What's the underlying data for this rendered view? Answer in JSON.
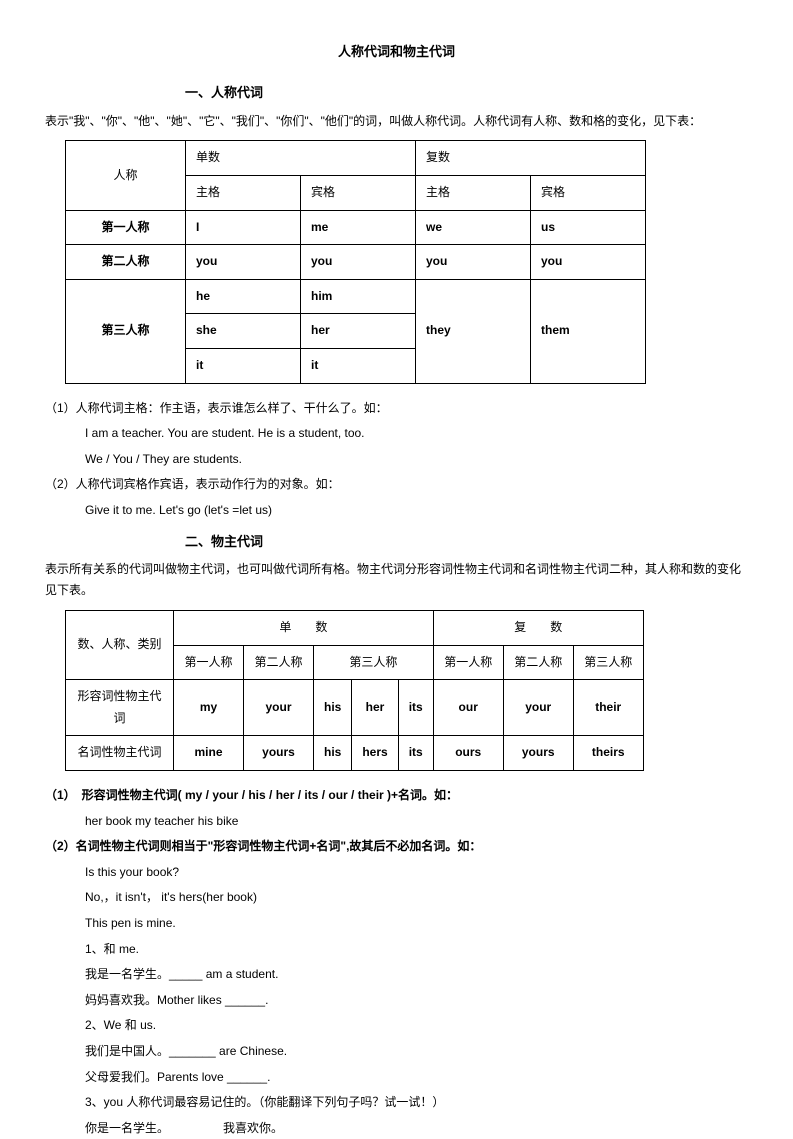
{
  "title": "人称代词和物主代词",
  "sec1": {
    "heading": "一、人称代词",
    "intro": "表示\"我\"、\"你\"、\"他\"、\"她\"、\"它\"、\"我们\"、\"你们\"、\"他们\"的词，叫做人称代词。人称代词有人称、数和格的变化，见下表：",
    "headers": {
      "person": "人称",
      "singular": "单数",
      "plural": "复数",
      "subj": "主格",
      "obj": "宾格"
    },
    "rows": {
      "p1": {
        "label": "第一人称",
        "ss": "I",
        "so": "me",
        "ps": "we",
        "po": "us"
      },
      "p2": {
        "label": "第二人称",
        "ss": "you",
        "so": "you",
        "ps": "you",
        "po": "you"
      },
      "p3": {
        "label": "第三人称",
        "ss1": "he",
        "so1": "him",
        "ss2": "she",
        "so2": "her",
        "ss3": "it",
        "so3": "it",
        "ps": "they",
        "po": "them"
      }
    },
    "note1": "（1）人称代词主格：作主语，表示谁怎么样了、干什么了。如：",
    "ex1a": "I   am a teacher.      You are student.        He is a student, too.",
    "ex1b": "We / You / They are students.",
    "note2": "（2）人称代词宾格作宾语，表示动作行为的对象。如：",
    "ex2a": "Give it to me.   Let's go (let's =let us)"
  },
  "sec2": {
    "heading": "二、物主代词",
    "intro": "表示所有关系的代词叫做物主代词，也可叫做代词所有格。物主代词分形容词性物主代词和名词性物主代词二种，其人称和数的变化见下表。",
    "headers": {
      "cat": "数、人称、类别",
      "singular": "单　　数",
      "plural": "复　　数",
      "p1": "第一人称",
      "p2": "第二人称",
      "p3": "第三人称"
    },
    "row1": {
      "label": "形容词性物主代词",
      "c": [
        "my",
        "your",
        "his",
        "her",
        "its",
        "our",
        "your",
        "their"
      ]
    },
    "row2": {
      "label": "名词性物主代词",
      "c": [
        "mine",
        "yours",
        "his",
        "hers",
        "its",
        "ours",
        "yours",
        "theirs"
      ]
    },
    "note1": "（1）　形容词性物主代词( my / your / his / her / its / our / their )+名词。如：",
    "ex1": "her book      my teacher      his bike",
    "note2": "（2）名词性物主代词则相当于\"形容词性物主代词+名词\",故其后不必加名词。如：",
    "lines": [
      "Is this your book?",
      "No,，it isn't，  it's hers(her book)",
      "This pen is mine.",
      "1、和 me.",
      "我是一名学生。_____ am a student.",
      "妈妈喜欢我。Mother likes ______.",
      "2、We 和 us.",
      "我们是中国人。_______ are Chinese.",
      "父母爱我们。Parents love ______.",
      "3、you 人称代词最容易记住的。（你能翻译下列句子吗？试一试！）",
      "你是一名学生。　　　　　我喜欢你。"
    ]
  }
}
